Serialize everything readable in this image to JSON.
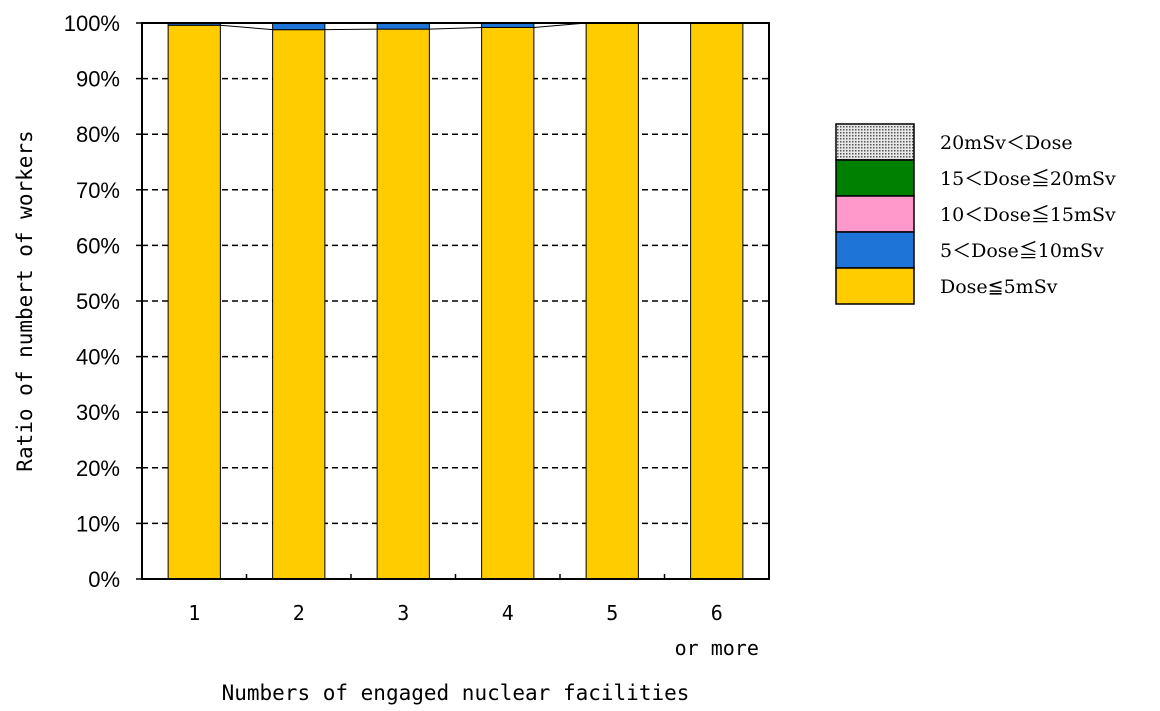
{
  "chart_data": {
    "type": "bar",
    "stacked": true,
    "categories": [
      {
        "line1": "1",
        "line2": ""
      },
      {
        "line1": "2",
        "line2": ""
      },
      {
        "line1": "3",
        "line2": ""
      },
      {
        "line1": "4",
        "line2": ""
      },
      {
        "line1": "5",
        "line2": ""
      },
      {
        "line1": "6",
        "line2": "or more"
      }
    ],
    "series": [
      {
        "name": "Dose≦5mSv",
        "color": "#FFCC00",
        "values": [
          99.6,
          98.8,
          98.9,
          99.2,
          100.0,
          100.0
        ]
      },
      {
        "name": "5＜Dose≦10mSv",
        "color": "#1F74D8",
        "values": [
          0.4,
          1.2,
          1.1,
          0.8,
          0.0,
          0.0
        ]
      },
      {
        "name": "10＜Dose≦15mSv",
        "color": "#FF99CC",
        "values": [
          0,
          0,
          0,
          0,
          0,
          0
        ]
      },
      {
        "name": "15＜Dose≦20mSv",
        "color": "#008000",
        "values": [
          0,
          0,
          0,
          0,
          0,
          0
        ]
      },
      {
        "name": "20mSv＜Dose",
        "color": "#C0C0C0",
        "pattern": "dotted",
        "values": [
          0,
          0,
          0,
          0,
          0,
          0
        ]
      }
    ],
    "ylim": [
      0,
      100
    ],
    "yticks": [
      "0%",
      "10%",
      "20%",
      "30%",
      "40%",
      "50%",
      "60%",
      "70%",
      "80%",
      "90%",
      "100%"
    ],
    "xlabel": "Numbers of engaged nuclear facilities",
    "ylabel": "Ratio of numbert of workers",
    "grid": "dashed horizontal",
    "legend_position": "right",
    "legend_order": [
      "20mSv＜Dose",
      "15＜Dose≦20mSv",
      "10＜Dose≦15mSv",
      "5＜Dose≦10mSv",
      "Dose≦5mSv"
    ],
    "series_lines": true
  }
}
